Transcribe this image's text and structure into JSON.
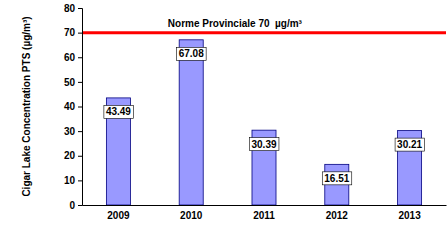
{
  "chart_data": {
    "type": "bar",
    "y_label": "Cigar Lake Concentration PTS (µg/m³)",
    "categories": [
      "2009",
      "2010",
      "2011",
      "2012",
      "2013"
    ],
    "values": [
      43.49,
      67.08,
      30.39,
      16.51,
      30.21
    ],
    "color": "#9999ff",
    "ylim": [
      0,
      80
    ],
    "yticks": [
      0,
      10,
      20,
      30,
      40,
      50,
      60,
      70,
      80
    ],
    "grid": false,
    "data_labels": true,
    "annotations": [
      {
        "text": "Norme Provinciale 70  µg/m³",
        "y": 70
      }
    ]
  }
}
